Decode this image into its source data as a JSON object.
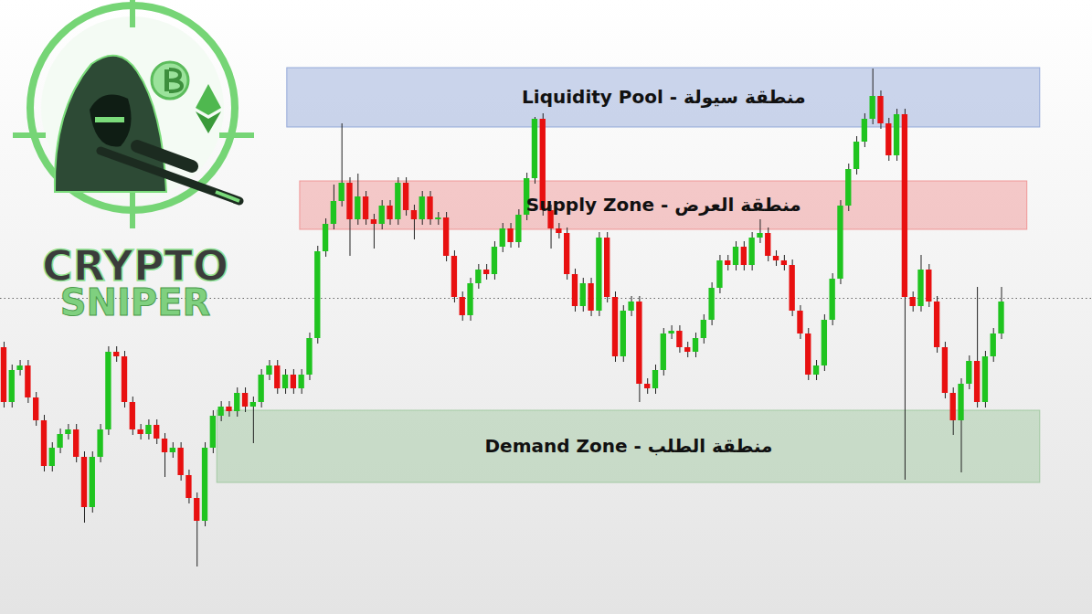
{
  "chart_data": {
    "type": "candlestick",
    "x": [
      0,
      1,
      2,
      3,
      4,
      5,
      6,
      7,
      8,
      9,
      10,
      11,
      12,
      13,
      14,
      15,
      16,
      17,
      18,
      19,
      20,
      21,
      22,
      23,
      24,
      25,
      26,
      27,
      28,
      29,
      30,
      31,
      32,
      33,
      34,
      35,
      36,
      37,
      38,
      39,
      40,
      41,
      42,
      43,
      44,
      45,
      46,
      47,
      48,
      49,
      50,
      51,
      52,
      53,
      54,
      55,
      56,
      57,
      58,
      59,
      60,
      61,
      62,
      63,
      64,
      65,
      66,
      67,
      68,
      69,
      70,
      71,
      72,
      73,
      74,
      75,
      76,
      77,
      78,
      79,
      80,
      81,
      82,
      83,
      84,
      85,
      86,
      87,
      88,
      89,
      90,
      91,
      92,
      93,
      94,
      95,
      96,
      97,
      98,
      99,
      100,
      101,
      102,
      103,
      104,
      105,
      106,
      107,
      108,
      109,
      110,
      111,
      112,
      113,
      114,
      115,
      116,
      117,
      118,
      119,
      120,
      121,
      122,
      123,
      124
    ],
    "open": [
      292,
      232,
      267,
      272,
      237,
      212,
      162,
      182,
      197,
      202,
      172,
      117,
      172,
      202,
      287,
      282,
      232,
      202,
      197,
      207,
      192,
      177,
      182,
      152,
      127,
      102,
      182,
      217,
      227,
      222,
      242,
      227,
      232,
      262,
      272,
      247,
      262,
      247,
      262,
      302,
      397,
      427,
      452,
      472,
      432,
      457,
      432,
      427,
      447,
      432,
      472,
      442,
      432,
      457,
      432,
      434,
      392,
      347,
      327,
      362,
      377,
      372,
      402,
      422,
      407,
      437,
      477,
      542,
      442,
      422,
      417,
      372,
      337,
      362,
      332,
      412,
      347,
      282,
      332,
      342,
      252,
      247,
      267,
      307,
      310,
      292,
      287,
      302,
      322,
      357,
      387,
      382,
      402,
      382,
      412,
      417,
      392,
      387,
      382,
      332,
      307,
      262,
      272,
      322,
      367,
      447,
      487,
      517,
      542,
      567,
      537,
      502,
      547,
      347,
      337,
      377,
      342,
      292,
      242,
      212,
      252,
      277,
      232,
      282,
      307
    ],
    "high": [
      298,
      273,
      278,
      278,
      243,
      218,
      188,
      203,
      208,
      208,
      178,
      178,
      208,
      293,
      293,
      288,
      238,
      208,
      213,
      213,
      198,
      188,
      188,
      158,
      133,
      188,
      223,
      233,
      233,
      248,
      248,
      238,
      268,
      278,
      278,
      268,
      268,
      268,
      308,
      403,
      433,
      470,
      537,
      478,
      482,
      463,
      438,
      453,
      453,
      478,
      478,
      448,
      463,
      463,
      440,
      440,
      398,
      353,
      368,
      383,
      383,
      408,
      428,
      428,
      443,
      483,
      544,
      548,
      448,
      428,
      423,
      378,
      368,
      368,
      418,
      418,
      353,
      338,
      348,
      348,
      258,
      273,
      313,
      316,
      316,
      298,
      308,
      328,
      363,
      393,
      393,
      408,
      408,
      418,
      432,
      423,
      398,
      393,
      388,
      338,
      313,
      278,
      328,
      373,
      453,
      493,
      523,
      548,
      597,
      573,
      543,
      553,
      553,
      353,
      393,
      383,
      348,
      298,
      248,
      258,
      283,
      358,
      288,
      313,
      358
    ],
    "low": [
      226,
      226,
      261,
      231,
      206,
      156,
      156,
      176,
      191,
      166,
      100,
      111,
      166,
      196,
      276,
      226,
      196,
      191,
      191,
      186,
      150,
      171,
      146,
      121,
      52,
      96,
      176,
      211,
      216,
      216,
      221,
      187,
      226,
      256,
      241,
      241,
      241,
      241,
      256,
      296,
      391,
      421,
      446,
      392,
      426,
      426,
      400,
      421,
      426,
      426,
      436,
      410,
      426,
      426,
      426,
      386,
      341,
      321,
      321,
      356,
      366,
      366,
      396,
      401,
      401,
      431,
      471,
      436,
      400,
      411,
      366,
      331,
      331,
      326,
      326,
      341,
      276,
      276,
      326,
      232,
      241,
      241,
      261,
      301,
      286,
      281,
      281,
      296,
      316,
      351,
      376,
      376,
      376,
      376,
      406,
      386,
      381,
      376,
      326,
      301,
      256,
      256,
      266,
      316,
      361,
      441,
      481,
      511,
      536,
      531,
      496,
      496,
      147,
      331,
      331,
      336,
      286,
      236,
      196,
      155,
      246,
      226,
      226,
      276,
      301
    ],
    "close": [
      232,
      267,
      272,
      237,
      212,
      162,
      182,
      197,
      202,
      172,
      117,
      172,
      202,
      287,
      282,
      232,
      202,
      197,
      207,
      192,
      177,
      182,
      152,
      127,
      102,
      182,
      217,
      227,
      222,
      242,
      227,
      232,
      262,
      272,
      247,
      262,
      247,
      262,
      302,
      397,
      427,
      452,
      472,
      432,
      457,
      432,
      427,
      447,
      432,
      472,
      442,
      432,
      457,
      432,
      434,
      392,
      347,
      327,
      362,
      377,
      372,
      402,
      422,
      407,
      437,
      477,
      542,
      442,
      422,
      417,
      372,
      337,
      362,
      332,
      412,
      347,
      282,
      332,
      342,
      252,
      247,
      267,
      307,
      310,
      292,
      287,
      302,
      322,
      357,
      387,
      382,
      402,
      382,
      412,
      417,
      392,
      387,
      382,
      332,
      307,
      262,
      272,
      322,
      367,
      447,
      487,
      517,
      542,
      567,
      537,
      502,
      547,
      347,
      337,
      377,
      342,
      292,
      242,
      212,
      252,
      277,
      232,
      282,
      307,
      342
    ],
    "color": {
      "up": "#1fc41f",
      "down": "#e81010"
    },
    "xlim": [
      -0.45,
      135.3
    ],
    "ylim": [
      0,
      672
    ],
    "tick_labels": false,
    "grid": false,
    "price_line": 346,
    "zones": [
      {
        "label": "Liquidity Pool - منطقة سيولة",
        "x1": 35.2,
        "x2": 128.8,
        "y1": 533,
        "y2": 598,
        "color": "#8da3d6"
      },
      {
        "label": "Supply Zone - منطقة العرض",
        "x1": 36.8,
        "x2": 127.2,
        "y1": 421,
        "y2": 474,
        "color": "#ef8f8f"
      },
      {
        "label": "Demand Zone - منطقة الطلب",
        "x1": 26.5,
        "x2": 128.8,
        "y1": 144,
        "y2": 223,
        "color": "#9dc79d"
      }
    ]
  },
  "logo": {
    "text": [
      "CRYPTO",
      "SNIPER"
    ]
  }
}
